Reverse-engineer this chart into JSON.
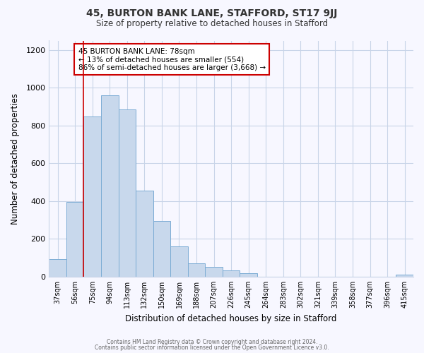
{
  "title": "45, BURTON BANK LANE, STAFFORD, ST17 9JJ",
  "subtitle": "Size of property relative to detached houses in Stafford",
  "xlabel": "Distribution of detached houses by size in Stafford",
  "ylabel": "Number of detached properties",
  "categories": [
    "37sqm",
    "56sqm",
    "75sqm",
    "94sqm",
    "113sqm",
    "132sqm",
    "150sqm",
    "169sqm",
    "188sqm",
    "207sqm",
    "226sqm",
    "245sqm",
    "264sqm",
    "283sqm",
    "302sqm",
    "321sqm",
    "339sqm",
    "358sqm",
    "377sqm",
    "396sqm",
    "415sqm"
  ],
  "values": [
    95,
    395,
    848,
    960,
    885,
    455,
    295,
    160,
    70,
    52,
    35,
    17,
    0,
    0,
    0,
    0,
    0,
    0,
    0,
    0,
    10
  ],
  "bar_color": "#c8d8ec",
  "bar_edge_color": "#7bacd4",
  "highlight_line_index": 2,
  "highlight_line_color": "#cc0000",
  "annotation_line1": "45 BURTON BANK LANE: 78sqm",
  "annotation_line2": "← 13% of detached houses are smaller (554)",
  "annotation_line3": "86% of semi-detached houses are larger (3,668) →",
  "annotation_box_color": "#ffffff",
  "annotation_border_color": "#cc0000",
  "ylim": [
    0,
    1250
  ],
  "yticks": [
    0,
    200,
    400,
    600,
    800,
    1000,
    1200
  ],
  "footer_line1": "Contains HM Land Registry data © Crown copyright and database right 2024.",
  "footer_line2": "Contains public sector information licensed under the Open Government Licence v3.0.",
  "background_color": "#f7f7ff",
  "grid_color": "#c8d4e8"
}
